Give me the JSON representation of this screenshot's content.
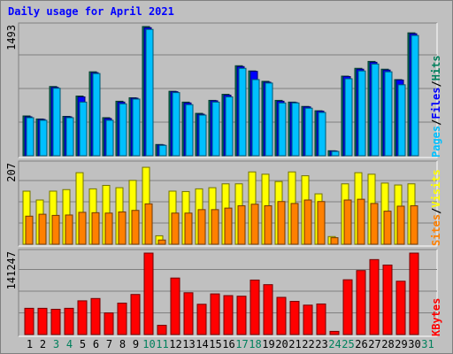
{
  "title": "Daily usage for April 2021",
  "colors": {
    "hits": "#00805c",
    "files": "#0000ff",
    "pages": "#00c0ff",
    "visits": "#ffff00",
    "sites": "#ff8000",
    "kbytes": "#ff0000",
    "weekend_label": "#00805c",
    "weekday_label": "#000000"
  },
  "chart_data": [
    {
      "type": "bar",
      "panel": "hits-files-pages",
      "categories": [
        "1",
        "2",
        "3",
        "4",
        "5",
        "6",
        "7",
        "8",
        "9",
        "10",
        "11",
        "12",
        "13",
        "14",
        "15",
        "16",
        "17",
        "18",
        "19",
        "20",
        "21",
        "22",
        "23",
        "24",
        "25",
        "26",
        "27",
        "28",
        "29",
        "30",
        "31"
      ],
      "weekend_days": [
        "3",
        "4",
        "10",
        "11",
        "17",
        "18",
        "24",
        "25",
        "31"
      ],
      "ymax_label": "1493",
      "ylim": [
        0,
        1493
      ],
      "series": [
        {
          "name": "Hits",
          "values": [
            460,
            425,
            800,
            455,
            690,
            970,
            440,
            630,
            670,
            1493,
            130,
            745,
            620,
            490,
            640,
            710,
            1040,
            980,
            860,
            640,
            620,
            570,
            520,
            58,
            920,
            1010,
            1090,
            1000,
            880,
            1420,
            0
          ]
        },
        {
          "name": "Files",
          "values": [
            450,
            420,
            790,
            450,
            680,
            960,
            430,
            620,
            665,
            1480,
            125,
            740,
            610,
            480,
            635,
            700,
            1030,
            975,
            850,
            630,
            615,
            565,
            515,
            55,
            915,
            1000,
            1080,
            990,
            875,
            1410,
            0
          ]
        },
        {
          "name": "Pages",
          "values": [
            440,
            410,
            780,
            440,
            620,
            950,
            410,
            600,
            655,
            1460,
            120,
            730,
            590,
            470,
            620,
            680,
            1010,
            880,
            840,
            610,
            610,
            550,
            500,
            50,
            890,
            980,
            1060,
            970,
            820,
            1390,
            0
          ]
        }
      ],
      "legend": [
        "Pages",
        "Files",
        "Hits"
      ]
    },
    {
      "type": "bar",
      "panel": "visits-sites",
      "categories": [
        "1",
        "2",
        "3",
        "4",
        "5",
        "6",
        "7",
        "8",
        "9",
        "10",
        "11",
        "12",
        "13",
        "14",
        "15",
        "16",
        "17",
        "18",
        "19",
        "20",
        "21",
        "22",
        "23",
        "24",
        "25",
        "26",
        "27",
        "28",
        "29",
        "30",
        "31"
      ],
      "ymax_label": "207",
      "ylim": [
        0,
        207
      ],
      "series": [
        {
          "name": "Visits",
          "values": [
            138,
            115,
            138,
            142,
            186,
            144,
            153,
            147,
            166,
            200,
            22,
            138,
            137,
            144,
            147,
            157,
            157,
            188,
            182,
            163,
            188,
            178,
            131,
            20,
            157,
            186,
            182,
            159,
            154,
            157,
            0
          ]
        },
        {
          "name": "Sites",
          "values": [
            73,
            78,
            75,
            76,
            83,
            82,
            81,
            84,
            88,
            105,
            11,
            81,
            81,
            90,
            90,
            94,
            100,
            104,
            100,
            111,
            106,
            115,
            111,
            17,
            115,
            117,
            106,
            86,
            99,
            100,
            0
          ]
        }
      ],
      "legend": [
        "Sites",
        "Visits"
      ]
    },
    {
      "type": "bar",
      "panel": "kbytes",
      "categories": [
        "1",
        "2",
        "3",
        "4",
        "5",
        "6",
        "7",
        "8",
        "9",
        "10",
        "11",
        "12",
        "13",
        "14",
        "15",
        "16",
        "17",
        "18",
        "19",
        "20",
        "21",
        "22",
        "23",
        "24",
        "25",
        "26",
        "27",
        "28",
        "29",
        "30",
        "31"
      ],
      "ymax_label": "141247",
      "ylim": [
        0,
        141247
      ],
      "series": [
        {
          "name": "KBytes",
          "values": [
            45500,
            45500,
            43800,
            45500,
            58500,
            62500,
            37500,
            54500,
            69500,
            141247,
            16000,
            98000,
            72500,
            52500,
            70500,
            67500,
            66500,
            94500,
            86500,
            64500,
            57500,
            51000,
            53000,
            5500,
            95000,
            111000,
            130000,
            120500,
            92500,
            141247,
            0
          ]
        }
      ],
      "legend": [
        "KBytes"
      ]
    }
  ]
}
